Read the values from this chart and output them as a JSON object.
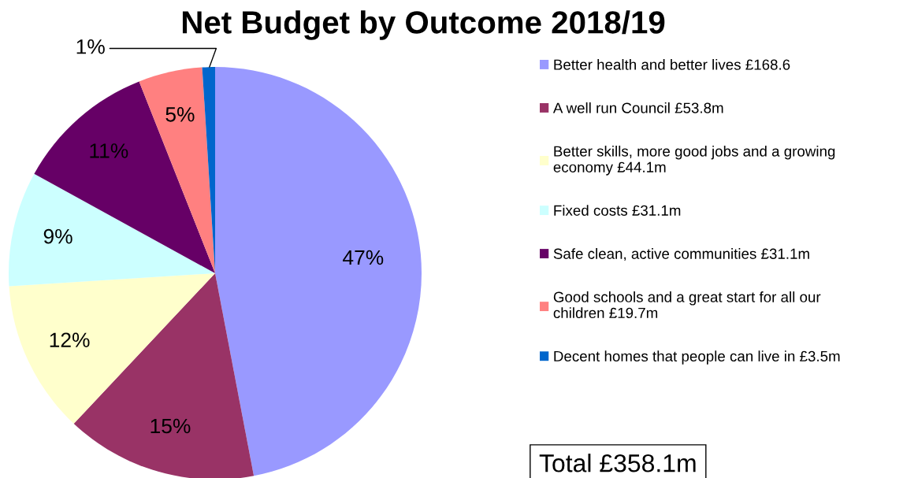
{
  "chart_data": {
    "type": "pie",
    "title": "Net Budget by Outcome 2018/19",
    "categories": [
      "Better health and better lives £168.6",
      "A well run Council £53.8m",
      "Better skills, more good jobs and a growing\neconomy £44.1m",
      "Fixed costs £31.1m",
      "Safe clean, active communities £31.1m",
      "Good schools and a great start for all our\nchildren £19.7m",
      "Decent homes that people can live in £3.5m"
    ],
    "values": [
      47,
      15,
      12,
      9,
      11,
      5,
      1
    ],
    "colors": [
      "#9999ff",
      "#993366",
      "#ffffcc",
      "#ccffff",
      "#660066",
      "#ff8080",
      "#0066cc"
    ],
    "value_labels": [
      "47%",
      "15%",
      "12%",
      "9%",
      "11%",
      "5%",
      "1%"
    ],
    "legend": "right",
    "annotations": [
      "Total £358.1m"
    ]
  }
}
